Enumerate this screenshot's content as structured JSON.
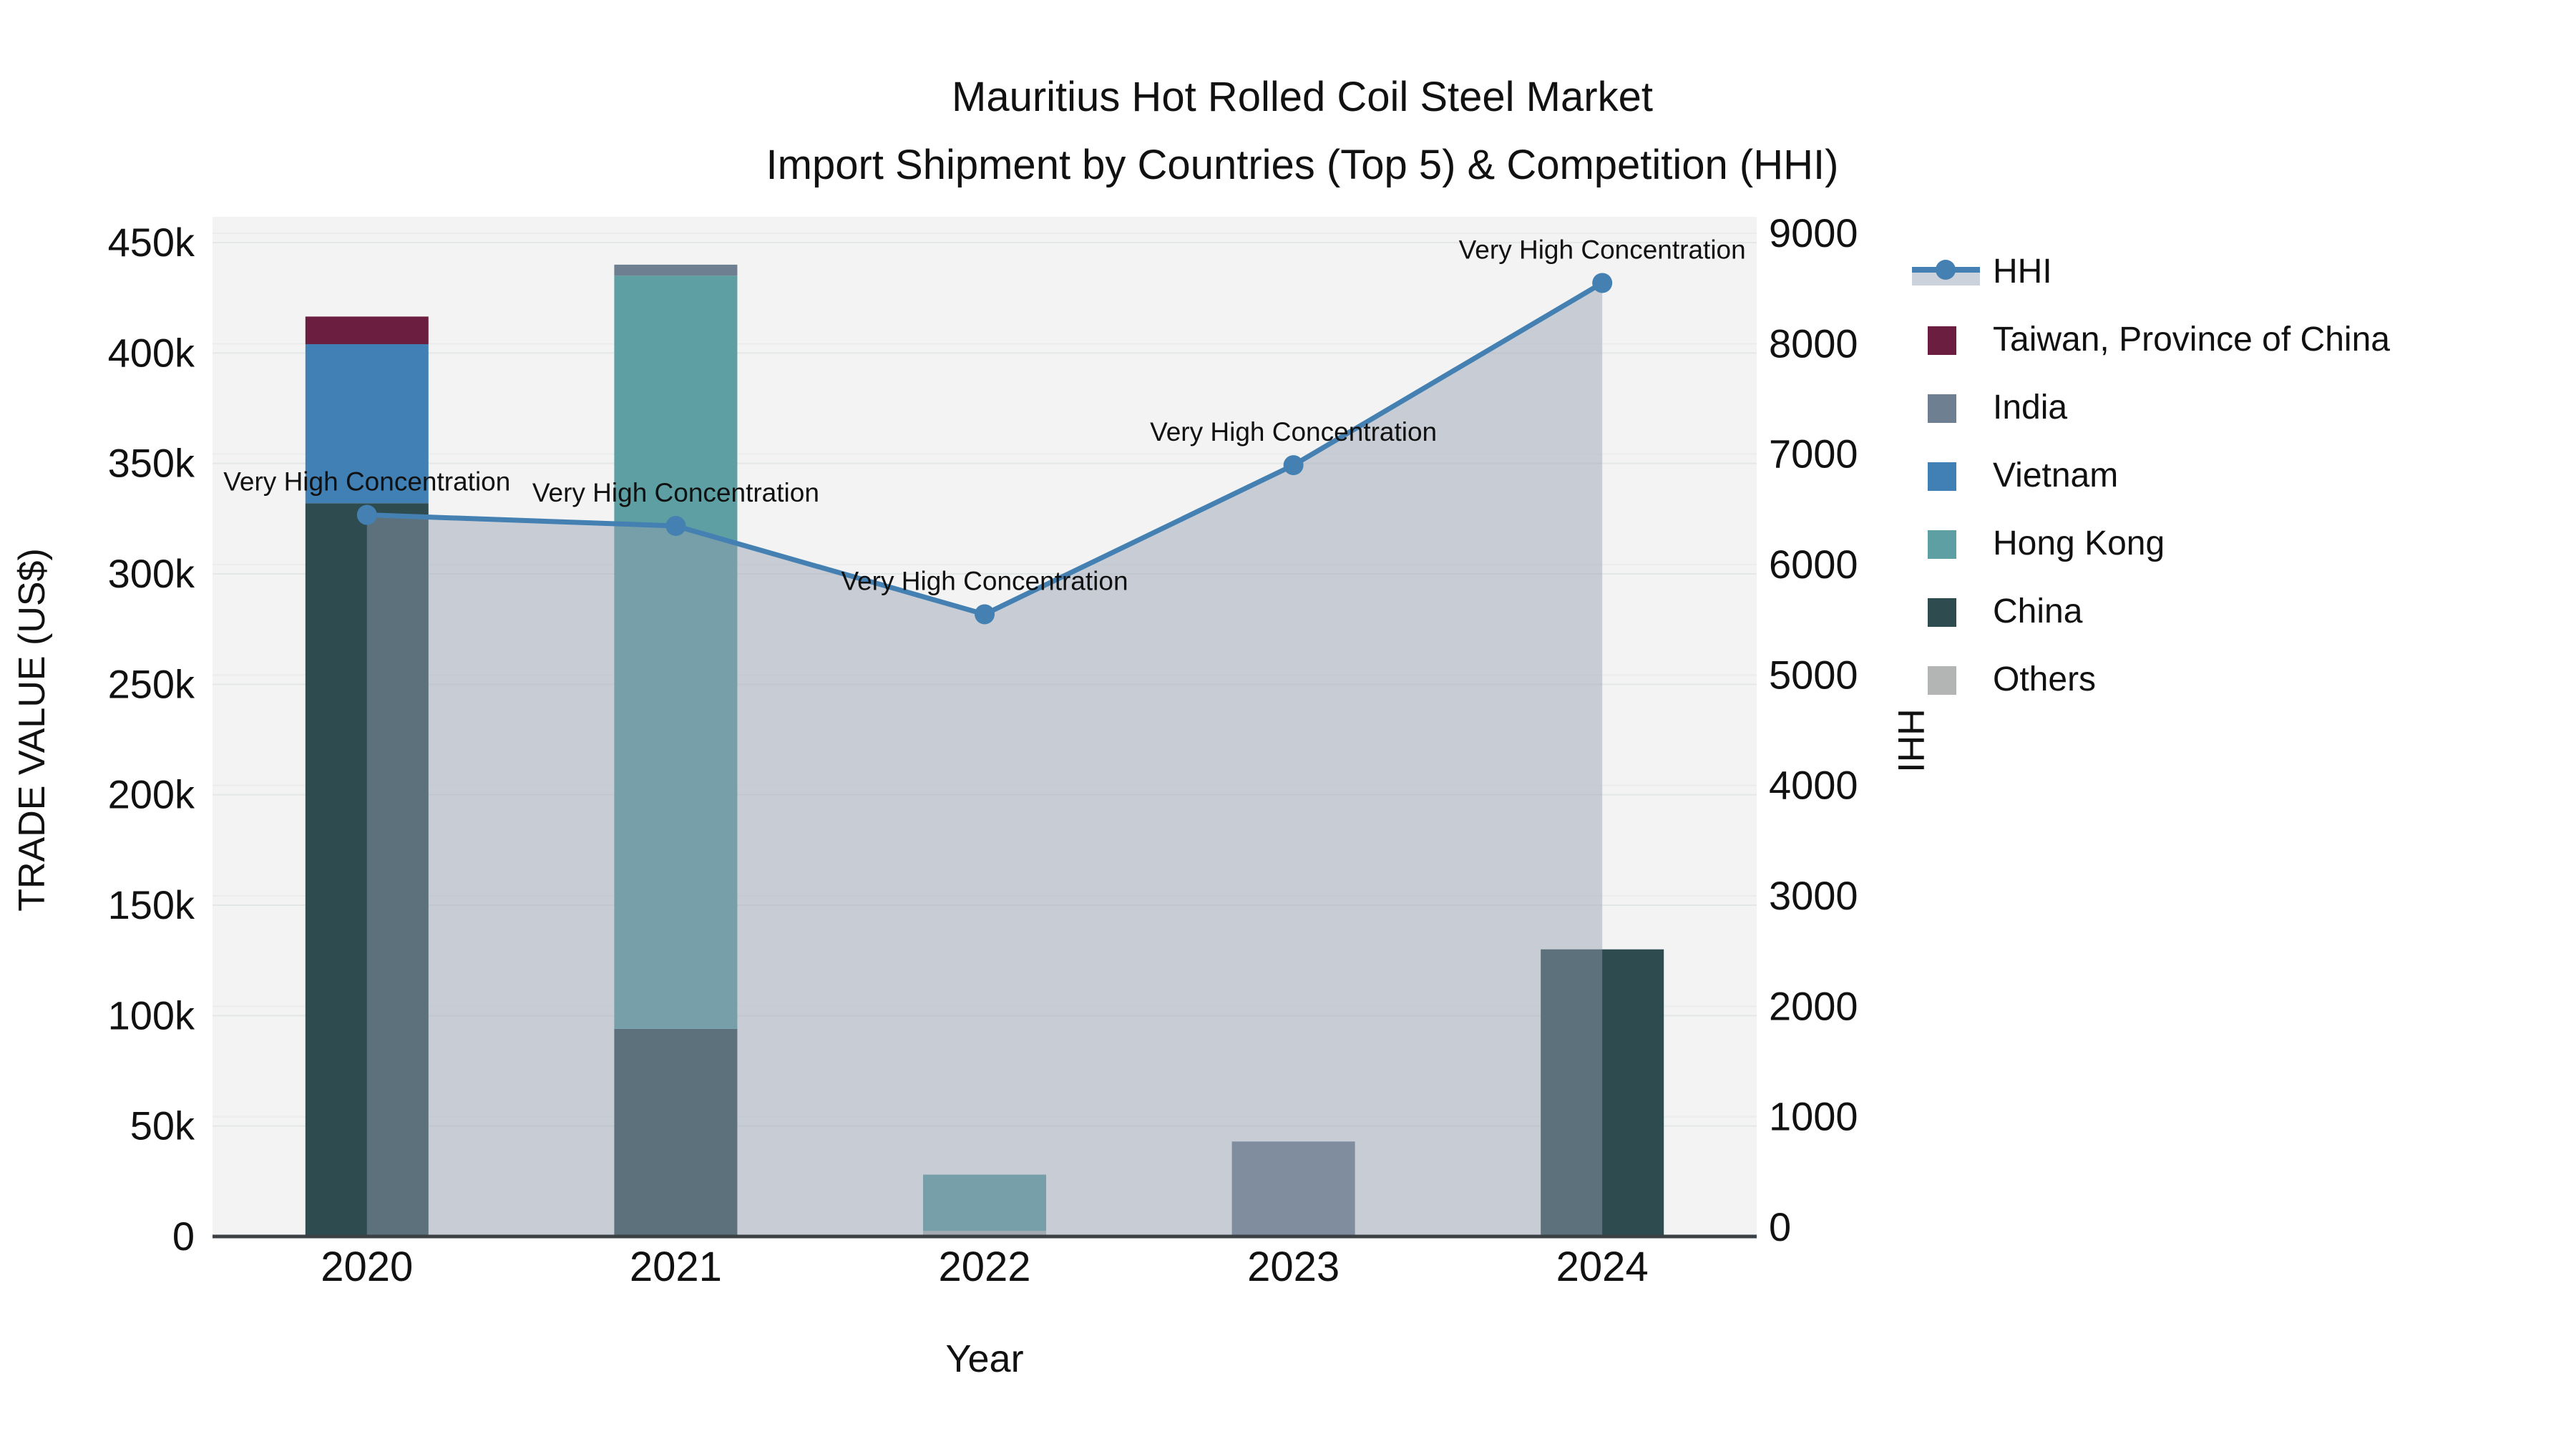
{
  "title": {
    "line1": "Mauritius Hot Rolled Coil Steel Market",
    "line2": "Import Shipment by Countries (Top 5) & Competition (HHI)"
  },
  "axes": {
    "x_title": "Year",
    "y_left_title": "TRADE VALUE (US$)",
    "y_right_title": "HHI",
    "y_left_tick_labels": [
      "0",
      "50k",
      "100k",
      "150k",
      "200k",
      "250k",
      "300k",
      "350k",
      "400k",
      "450k"
    ],
    "y_right_tick_labels": [
      "0",
      "1000",
      "2000",
      "3000",
      "4000",
      "5000",
      "6000",
      "7000",
      "8000",
      "9000"
    ]
  },
  "legend": {
    "items": [
      {
        "label": "HHI",
        "type": "line",
        "color": "#4580B2",
        "band": "#CCD2DB"
      },
      {
        "label": "Taiwan, Province of China",
        "type": "swatch",
        "color": "#6B1E40"
      },
      {
        "label": "India",
        "type": "swatch",
        "color": "#6E7F91"
      },
      {
        "label": "Vietnam",
        "type": "swatch",
        "color": "#4080B4"
      },
      {
        "label": "Hong Kong",
        "type": "swatch",
        "color": "#5D9FA2"
      },
      {
        "label": "China",
        "type": "swatch",
        "color": "#2E4B4F"
      },
      {
        "label": "Others",
        "type": "swatch",
        "color": "#B2B5B4"
      }
    ]
  },
  "chart_data": {
    "type": "bar",
    "subtype": "stacked-bars-with-secondary-line",
    "title": "Mauritius Hot Rolled Coil Steel Market Import Shipment by Countries (Top 5) & Competition (HHI)",
    "xlabel": "Year",
    "ylabel_left": "TRADE VALUE (US$)",
    "ylabel_right": "HHI",
    "categories": [
      "2020",
      "2021",
      "2022",
      "2023",
      "2024"
    ],
    "ylim_left": [
      0,
      450000
    ],
    "ylim_right": [
      0,
      9000
    ],
    "grid": true,
    "legend_position": "right",
    "series": [
      {
        "name": "Others",
        "color": "#B2B5B4",
        "values": [
          0,
          0,
          2500,
          0,
          0
        ]
      },
      {
        "name": "China",
        "color": "#2E4B4F",
        "values": [
          332000,
          94000,
          0,
          0,
          130000
        ]
      },
      {
        "name": "Hong Kong",
        "color": "#5D9FA2",
        "values": [
          0,
          341000,
          25500,
          0,
          0
        ]
      },
      {
        "name": "Vietnam",
        "color": "#4080B4",
        "values": [
          72000,
          0,
          0,
          0,
          0
        ]
      },
      {
        "name": "India",
        "color": "#6E7F91",
        "values": [
          0,
          5000,
          0,
          43000,
          0
        ]
      },
      {
        "name": "Taiwan, Province of China",
        "color": "#6B1E40",
        "values": [
          12500,
          0,
          0,
          0,
          0
        ]
      }
    ],
    "line_series": {
      "name": "HHI",
      "axis": "right",
      "color": "#4580B2",
      "area_fill": "rgba(148,159,178,0.45)",
      "values": [
        6450,
        6350,
        5550,
        6900,
        8550
      ]
    },
    "annotations": [
      "Very High Concentration",
      "Very High Concentration",
      "Very High Concentration",
      "Very High Concentration",
      "Very High Concentration"
    ]
  }
}
